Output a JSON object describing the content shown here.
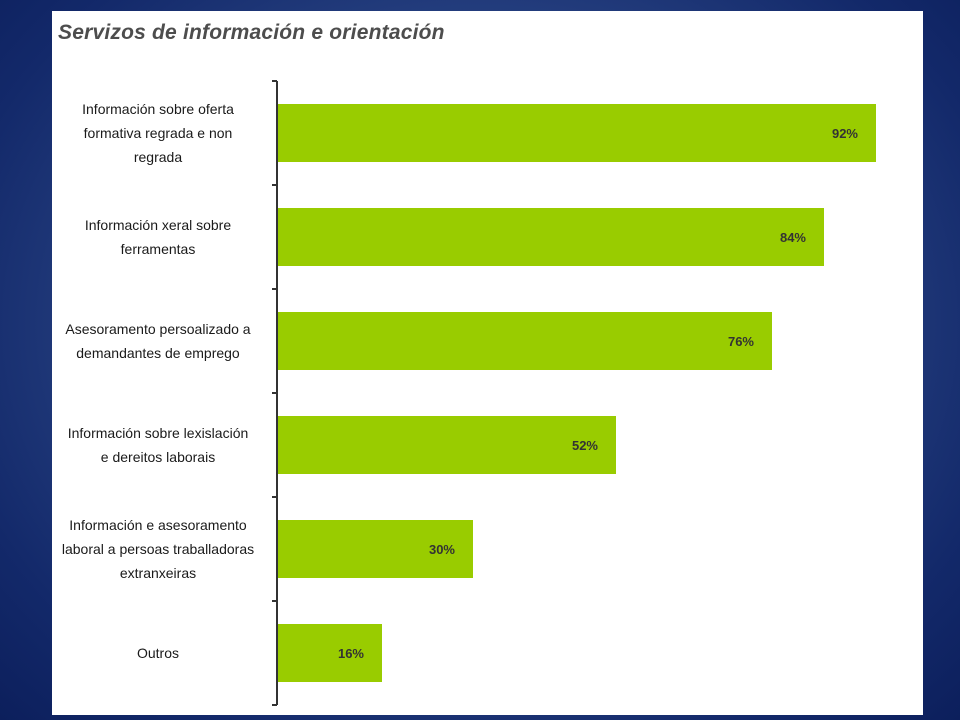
{
  "chart_data": {
    "type": "bar",
    "orientation": "horizontal",
    "title": "Servizos de información e orientación",
    "categories": [
      [
        "Información sobre oferta",
        "formativa regrada e non",
        "regrada"
      ],
      [
        "Información xeral sobre",
        "ferramentas"
      ],
      [
        "Asesoramento persoalizado a",
        "demandantes de emprego"
      ],
      [
        "Información sobre lexislación",
        "e dereitos laborais"
      ],
      [
        "Información e asesoramento",
        "laboral a persoas traballadoras",
        "extranxeiras"
      ],
      [
        "Outros"
      ]
    ],
    "values": [
      92,
      84,
      76,
      52,
      30,
      16
    ],
    "value_labels": [
      "92%",
      "84%",
      "76%",
      "52%",
      "30%",
      "16%"
    ],
    "xlim": [
      0,
      100
    ],
    "xlabel": "",
    "ylabel": "",
    "grid": false,
    "bar_color": "#99cc00"
  }
}
